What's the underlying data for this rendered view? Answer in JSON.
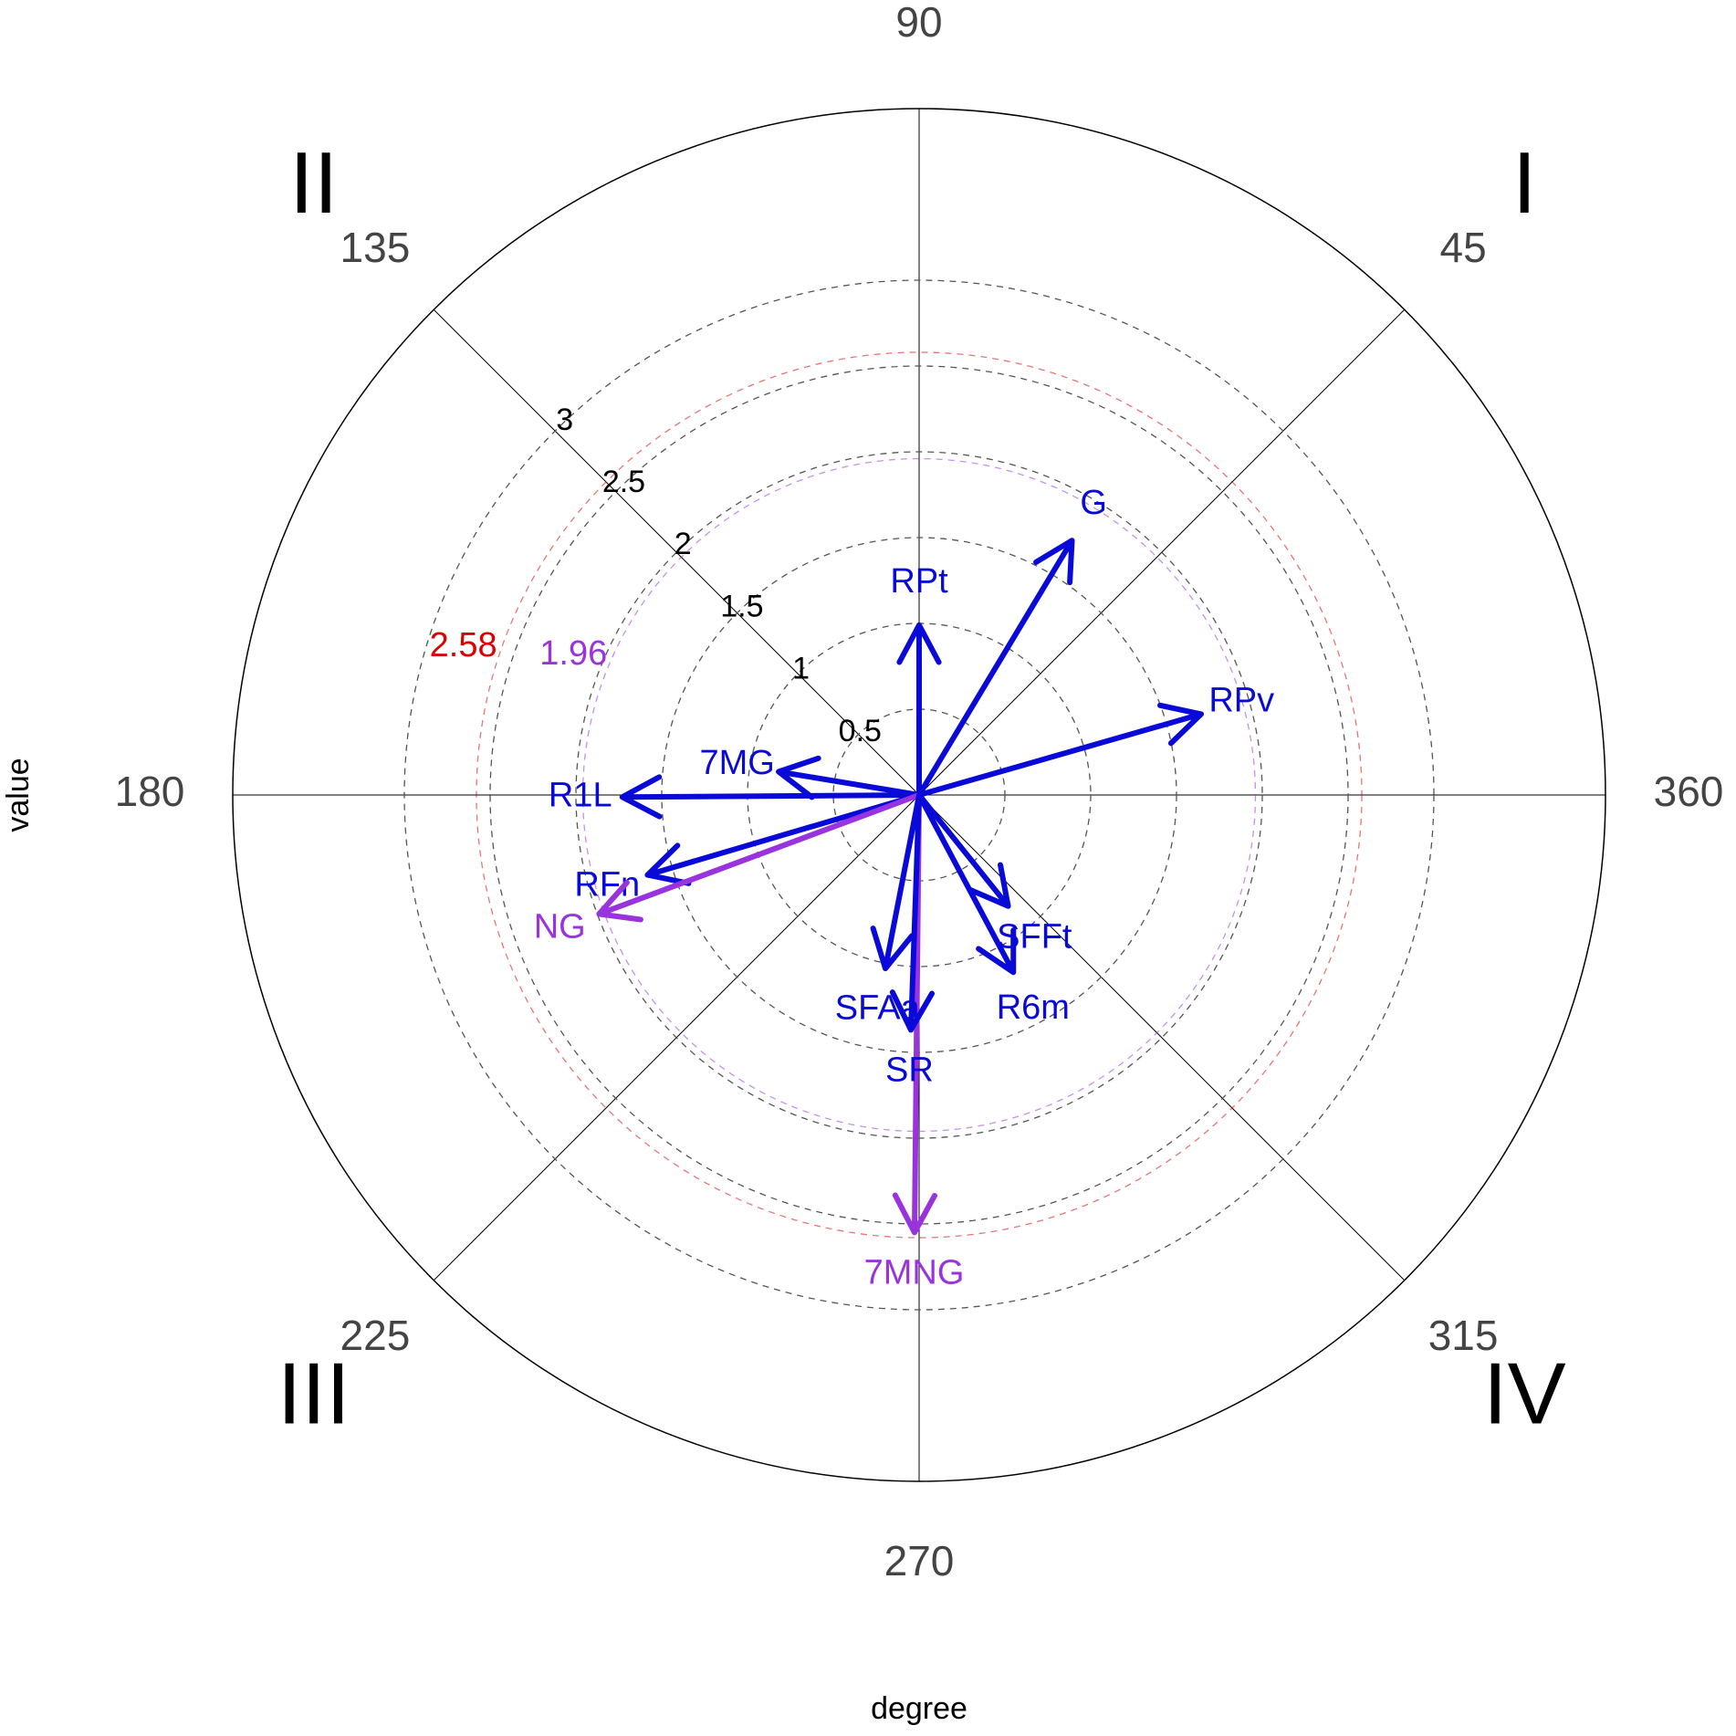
{
  "chart_data": {
    "type": "polar-vector",
    "x_label": "degree",
    "y_label": "value",
    "ylim": [
      0,
      4
    ],
    "yticks": [
      0.5,
      1,
      1.5,
      2,
      2.5,
      3
    ],
    "xticks": [
      45,
      90,
      135,
      180,
      225,
      270,
      315,
      360
    ],
    "quadrant_labels": [
      "I",
      "II",
      "III",
      "IV"
    ],
    "reference_circles": [
      {
        "value": 1.96,
        "color": "#9933dd"
      },
      {
        "value": 2.58,
        "color": "#dd0000"
      }
    ],
    "vectors": [
      {
        "name": "RPt",
        "angle": 90,
        "value": 0.99,
        "color": "#0a0ad8"
      },
      {
        "name": "G",
        "angle": 59,
        "value": 1.73,
        "color": "#0a0ad8"
      },
      {
        "name": "RPv",
        "angle": 16,
        "value": 1.71,
        "color": "#0a0ad8"
      },
      {
        "name": "7MG",
        "angle": 170.6,
        "value": 0.83,
        "color": "#0a0ad8"
      },
      {
        "name": "R1L",
        "angle": 180.4,
        "value": 1.73,
        "color": "#0a0ad8"
      },
      {
        "name": "RFn",
        "angle": 196.4,
        "value": 1.65,
        "color": "#0a0ad8"
      },
      {
        "name": "NG",
        "angle": 200.4,
        "value": 1.99,
        "color": "#9933dd"
      },
      {
        "name": "7MNG",
        "angle": 269.4,
        "value": 2.55,
        "color": "#9933dd"
      },
      {
        "name": "SR",
        "angle": 268,
        "value": 1.37,
        "color": "#0a0ad8"
      },
      {
        "name": "SFAa",
        "angle": 259,
        "value": 1.03,
        "color": "#0a0ad8"
      },
      {
        "name": "SFFt",
        "angle": 308.7,
        "value": 0.83,
        "color": "#0a0ad8"
      },
      {
        "name": "R6m",
        "angle": 298,
        "value": 1.17,
        "color": "#0a0ad8"
      }
    ]
  }
}
